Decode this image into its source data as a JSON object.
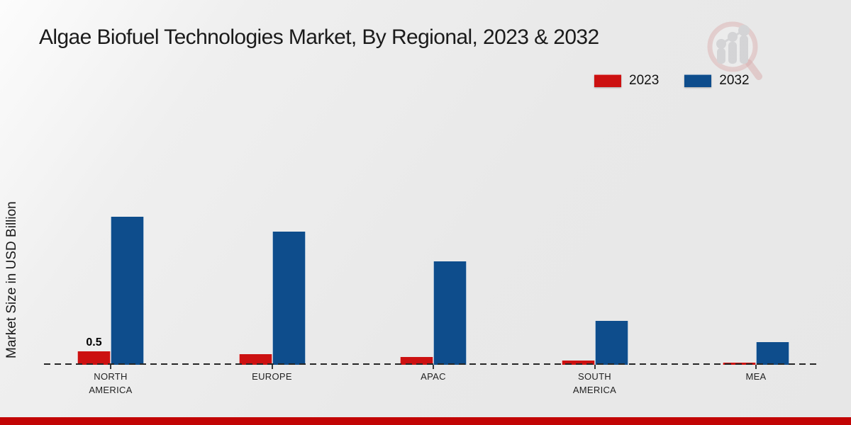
{
  "title": "Algae Biofuel Technologies Market, By Regional, 2023 & 2032",
  "ylabel": "Market Size in USD Billion",
  "legend": {
    "items": [
      {
        "label": "2023"
      },
      {
        "label": "2032"
      }
    ]
  },
  "colors": {
    "series_2023": "#cc1111",
    "series_2032": "#0e4d8c",
    "footer": "#c20404",
    "axis": "#262626",
    "background": "#e9e9e9"
  },
  "watermark_icon": "magnifier-bar-chart-logo",
  "chart_data": {
    "type": "bar",
    "title": "Algae Biofuel Technologies Market, By Regional, 2023 & 2032",
    "xlabel": "",
    "ylabel": "Market Size in USD Billion",
    "categories": [
      "NORTH AMERICA",
      "EUROPE",
      "APAC",
      "SOUTH AMERICA",
      "MEA"
    ],
    "series": [
      {
        "name": "2023",
        "color": "#cc1111",
        "values": [
          0.5,
          0.4,
          0.3,
          0.15,
          0.07
        ]
      },
      {
        "name": "2032",
        "color": "#0e4d8c",
        "values": [
          5.5,
          4.95,
          3.85,
          1.63,
          0.85
        ]
      }
    ],
    "data_labels": [
      {
        "series": "2023",
        "category": "NORTH AMERICA",
        "text": "0.5"
      }
    ],
    "ylim": [
      0,
      6
    ],
    "grid": false,
    "y_axis_visible": false,
    "baseline_style": "dashed",
    "legend_position": "top-right"
  }
}
